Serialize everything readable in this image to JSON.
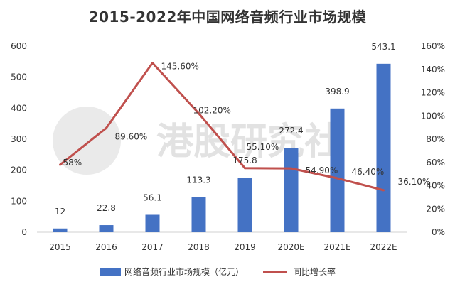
{
  "chart_data": {
    "type": "bar",
    "title": "2015-2022年中国网络音频行业市场规模",
    "categories": [
      "2015",
      "2016",
      "2017",
      "2018",
      "2019",
      "2020E",
      "2021E",
      "2022E"
    ],
    "series": [
      {
        "name": "网络音频行业市场规模（亿元）",
        "type": "bar",
        "axis": "left",
        "color": "#4472C4",
        "values": [
          12,
          22.8,
          56.1,
          113.3,
          175.8,
          272.4,
          398.9,
          543.1
        ],
        "labels": [
          "12",
          "22.8",
          "56.1",
          "113.3",
          "175.8",
          "272.4",
          "398.9",
          "543.1"
        ]
      },
      {
        "name": "同比增长率",
        "type": "line",
        "axis": "right",
        "color": "#C0504D",
        "values": [
          58,
          89.6,
          145.6,
          102.2,
          55.1,
          54.9,
          46.4,
          36.1
        ],
        "labels": [
          "58%",
          "89.60%",
          "145.60%",
          "102.20%",
          "55.10%",
          "54.90%",
          "46.40%",
          "36.10%"
        ]
      }
    ],
    "ylim_left": [
      0,
      600
    ],
    "yticks_left": [
      "0",
      "100",
      "200",
      "300",
      "400",
      "500",
      "600"
    ],
    "ylim_right": [
      0,
      160
    ],
    "yticks_right": [
      "0%",
      "20%",
      "40%",
      "60%",
      "80%",
      "100%",
      "120%",
      "140%",
      "160%"
    ],
    "grid": false,
    "legend_position": "bottom"
  },
  "watermark": "港股研究社"
}
